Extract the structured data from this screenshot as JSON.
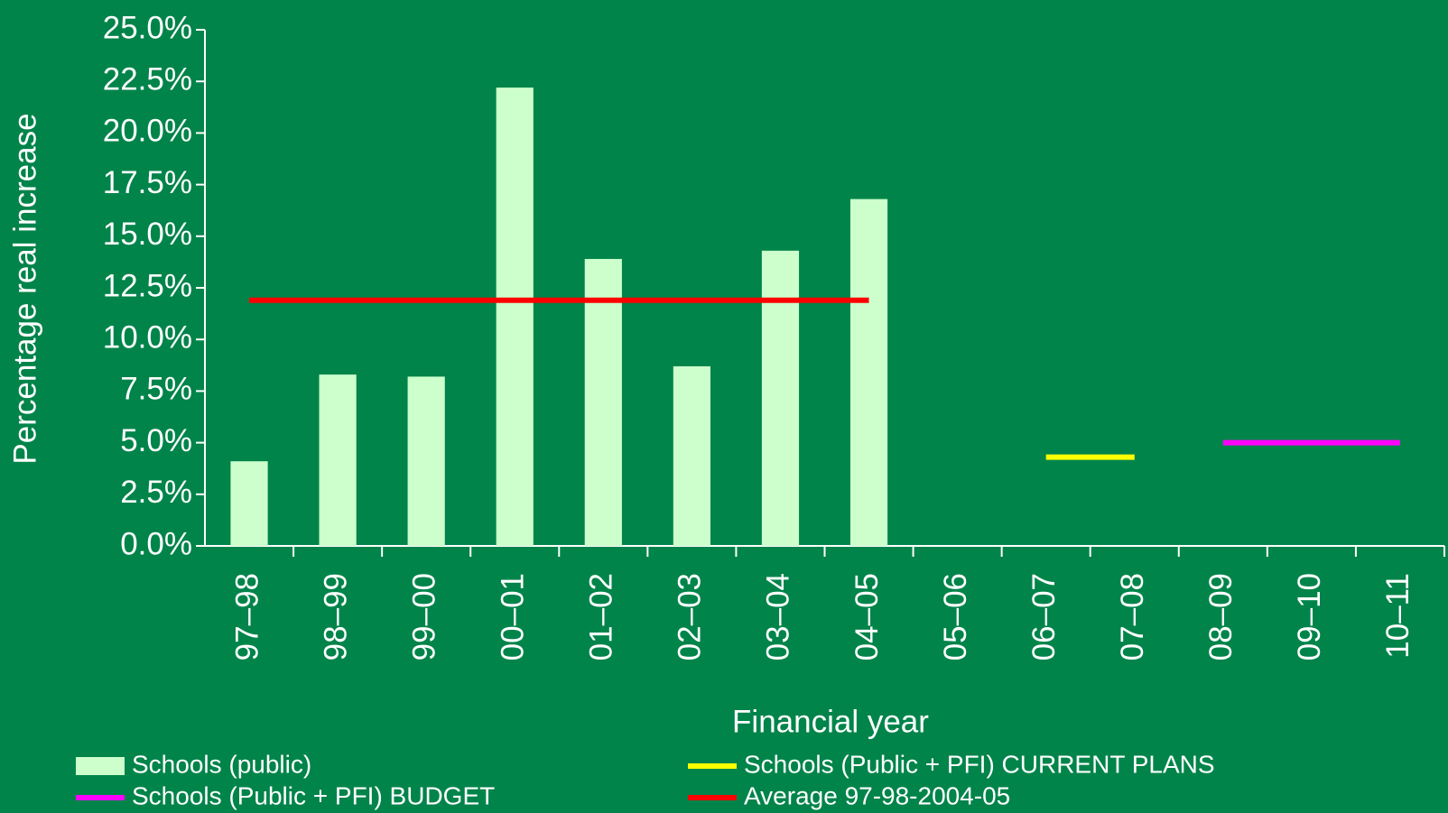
{
  "chart_data": {
    "type": "bar",
    "x_label": "Financial year",
    "y_label": "Percentage real increase",
    "categories": [
      "97–98",
      "98–99",
      "99–00",
      "00–01",
      "01–02",
      "02–03",
      "03–04",
      "04–05",
      "05–06",
      "06–07",
      "07–08",
      "08–09",
      "09–10",
      "10–11"
    ],
    "series": [
      {
        "name": "Schools (public)",
        "type": "bar",
        "color": "#ccffcc",
        "values": [
          4.1,
          8.3,
          8.2,
          22.2,
          13.9,
          8.7,
          14.3,
          16.8,
          null,
          null,
          null,
          null,
          null,
          null
        ]
      },
      {
        "name": "Schools (Public + PFI) CURRENT PLANS",
        "type": "line",
        "color": "#ffff00",
        "values": [
          null,
          null,
          null,
          null,
          null,
          null,
          null,
          null,
          null,
          4.3,
          4.3,
          null,
          null,
          null
        ]
      },
      {
        "name": "Schools (Public + PFI) BUDGET",
        "type": "line",
        "color": "#ff00ff",
        "values": [
          null,
          null,
          null,
          null,
          null,
          null,
          null,
          null,
          null,
          null,
          null,
          5.0,
          5.0,
          5.0
        ]
      },
      {
        "name": "Average 97-98-2004-05",
        "type": "line",
        "color": "#ff0000",
        "values": [
          11.9,
          11.9,
          11.9,
          11.9,
          11.9,
          11.9,
          11.9,
          11.9,
          null,
          null,
          null,
          null,
          null,
          null
        ]
      }
    ],
    "ylim": [
      0,
      25
    ],
    "yticks": [
      {
        "value": 0,
        "label": "0.0%"
      },
      {
        "value": 2.5,
        "label": "2.5%"
      },
      {
        "value": 5,
        "label": "5.0%"
      },
      {
        "value": 7.5,
        "label": "7.5%"
      },
      {
        "value": 10,
        "label": "10.0%"
      },
      {
        "value": 12.5,
        "label": "12.5%"
      },
      {
        "value": 15,
        "label": "15.0%"
      },
      {
        "value": 17.5,
        "label": "17.5%"
      },
      {
        "value": 20,
        "label": "20.0%"
      },
      {
        "value": 22.5,
        "label": "22.5%"
      },
      {
        "value": 25,
        "label": "25.0%"
      }
    ],
    "grid": false
  }
}
